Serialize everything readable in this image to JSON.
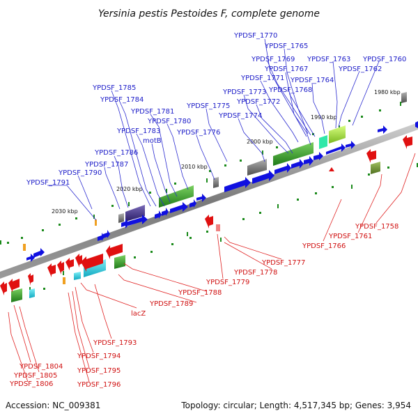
{
  "title": "Yersinia pestis Pestoides F, complete genome",
  "footer": {
    "accession": "Accession: NC_009381",
    "summary": "Topology: circular; Length: 4,517,345 bp; Genes: 3,954"
  },
  "colors": {
    "forward_gene": "#1010e0",
    "reverse_gene": "#e01010",
    "label_forward": "#1a1ac8",
    "label_reverse": "#d01010",
    "backbone": "#888888",
    "green_block": "#3a9a2a",
    "cyan_block": "#18c8d8",
    "purple_block": "#4a3a8a",
    "orange_block": "#f0a020"
  },
  "kbp_ticks": [
    "1980 kbp",
    "1990 kbp",
    "2000 kbp",
    "2010 kbp",
    "2020 kbp",
    "2030 kbp"
  ],
  "forward_labels": [
    "YPDSF_1770",
    "YPDSF_1765",
    "YPDSF_1769",
    "YPDSF_1763",
    "YPDSF_1760",
    "YPDSF_1767",
    "YPDSF_1762",
    "YPDSF_1771",
    "YPDSF_1764",
    "YPDSF_1785",
    "YPDSF_1773",
    "YPDSF_1768",
    "YPDSF_1784",
    "YPDSF_1772",
    "YPDSF_1775",
    "YPDSF_1781",
    "YPDSF_1774",
    "YPDSF_1780",
    "YPDSF_1783",
    "YPDSF_1776",
    "motB",
    "YPDSF_1786",
    "YPDSF_1787",
    "YPDSF_1790",
    "YPDSF_1791"
  ],
  "reverse_labels": [
    "YPDSF_1758",
    "YPDSF_1761",
    "YPDSF_1766",
    "YPDSF_1777",
    "YPDSF_1778",
    "YPDSF_1779",
    "YPDSF_1788",
    "YPDSF_1789",
    "lacZ",
    "YPDSF_1793",
    "YPDSF_1794",
    "YPDSF_1795",
    "YPDSF_1796",
    "YPDSF_1804",
    "YPDSF_1805",
    "YPDSF_1806"
  ]
}
